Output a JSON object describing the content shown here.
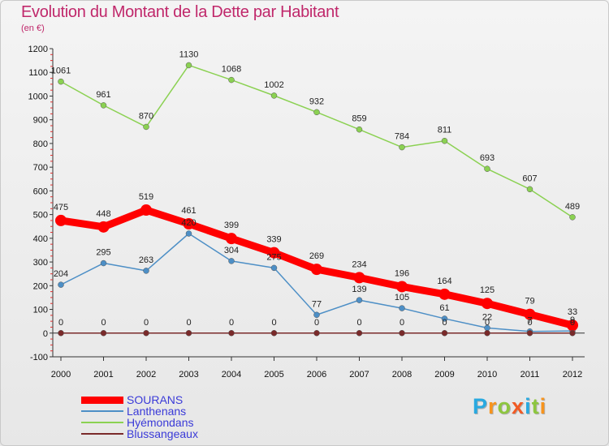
{
  "header": {
    "title": "Evolution du Montant de la Dette par Habitant",
    "subtitle": "(en €)"
  },
  "chart_data": {
    "type": "line",
    "title": "Evolution du Montant de la Dette par Habitant",
    "subtitle": "(en €)",
    "xlabel": "",
    "ylabel": "",
    "x": [
      "2000",
      "2001",
      "2002",
      "2003",
      "2004",
      "2005",
      "2006",
      "2007",
      "2008",
      "2009",
      "2010",
      "2011",
      "2012"
    ],
    "ylim": [
      -100,
      1200
    ],
    "yticks": [
      -100,
      0,
      100,
      200,
      300,
      400,
      500,
      600,
      700,
      800,
      900,
      1000,
      1100,
      1200
    ],
    "grid": false,
    "legend_position": "bottom-left",
    "series": [
      {
        "name": "SOURANS",
        "color": "#ff0000",
        "values": [
          475,
          448,
          519,
          461,
          399,
          339,
          269,
          234,
          196,
          164,
          125,
          79,
          33
        ],
        "labels": [
          "475",
          "448",
          "519",
          "461",
          "399",
          "339",
          "269",
          "234",
          "196",
          "164",
          "125",
          "79",
          "33"
        ]
      },
      {
        "name": "Lanthenans",
        "color": "#4d8fc6",
        "values": [
          204,
          295,
          263,
          420,
          304,
          275,
          77,
          139,
          105,
          61,
          22,
          7,
          9
        ],
        "labels": [
          "204",
          "295",
          "263",
          "420",
          "304",
          "275",
          "77",
          "139",
          "105",
          "61",
          "22",
          "7",
          "9"
        ]
      },
      {
        "name": "Hyémondans",
        "color": "#8bd152",
        "values": [
          1061,
          961,
          870,
          1130,
          1068,
          1002,
          932,
          859,
          784,
          811,
          693,
          607,
          489
        ],
        "labels": [
          "1061",
          "961",
          "870",
          "1130",
          "1068",
          "1002",
          "932",
          "859",
          "784",
          "811",
          "693",
          "607",
          "489"
        ]
      },
      {
        "name": "Blussangeaux",
        "color": "#7a2a2a",
        "values": [
          0,
          0,
          0,
          0,
          0,
          0,
          0,
          0,
          0,
          0,
          0,
          0,
          0
        ],
        "labels": [
          "0",
          "0",
          "0",
          "0",
          "0",
          "0",
          "0",
          "0",
          "0",
          "0",
          "0",
          "0",
          "0"
        ]
      }
    ]
  },
  "logo": {
    "letters": [
      "P",
      "r",
      "o",
      "x",
      "i",
      "t",
      "i"
    ],
    "colors": [
      "#29a9e0",
      "#f7941d",
      "#8dc63f",
      "#f15a24",
      "#29a9e0",
      "#8dc63f",
      "#f7941d"
    ]
  }
}
